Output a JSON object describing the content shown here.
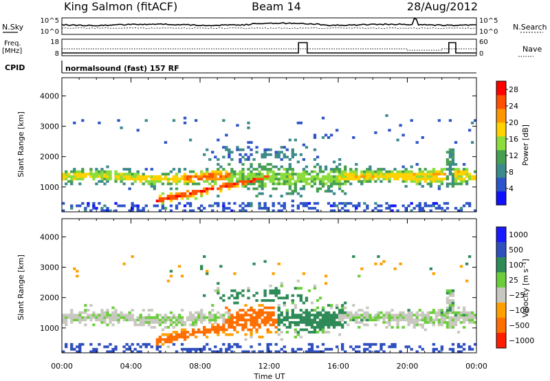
{
  "header": {
    "station": "King Salmon (fitACF)",
    "beam": "Beam 14",
    "date": "28/Aug/2012"
  },
  "aux_panels": {
    "nsky_label": "N.Sky",
    "nsearch_label": "N.Search",
    "freq_label_1": "Freq.",
    "freq_label_2": "[MHz]",
    "nave_label": "Nave",
    "cpid_label": "CPID",
    "cpid_text": "normalsound (fast) 157 RF",
    "noise_ticks": [
      "10^5",
      "10^0"
    ],
    "freq_ticks": [
      "18",
      "8"
    ],
    "nave_ticks": [
      "60",
      "0"
    ]
  },
  "chart_data": [
    {
      "type": "heatmap",
      "name": "power-panel",
      "ylabel": "Slant Range [km]",
      "ylim": [
        180,
        4600
      ],
      "yticks": [
        1000,
        2000,
        3000,
        4000
      ],
      "colorbar": {
        "label": "Power [dB]",
        "ticks": [
          4,
          8,
          12,
          16,
          20,
          24,
          28
        ],
        "range": [
          0,
          30
        ],
        "colors": [
          "#1111ff",
          "#2d54c8",
          "#3c8a8a",
          "#46a050",
          "#8cdc3c",
          "#ffd200",
          "#ff9600",
          "#ff5000",
          "#ff0000"
        ]
      }
    },
    {
      "type": "heatmap",
      "name": "velocity-panel",
      "ylabel": "Slant Range [km]",
      "ylim": [
        180,
        4600
      ],
      "yticks": [
        1000,
        2000,
        3000,
        4000
      ],
      "colorbar": {
        "label": "Velocity [m s⁻¹]",
        "ticks": [
          "1000",
          "500",
          "100",
          "25",
          "−25",
          "−100",
          "−500",
          "−1000"
        ],
        "colors": [
          "#1a1aff",
          "#2f4fbf",
          "#2e8b57",
          "#6ccd3c",
          "#c8c8c0",
          "#ffa000",
          "#ff6e00",
          "#ff1e00"
        ]
      }
    }
  ],
  "x_axis": {
    "label": "Time UT",
    "range_hours": [
      0,
      24
    ],
    "ticks": [
      "00:00",
      "04:00",
      "08:00",
      "12:00",
      "16:00",
      "20:00",
      "00:00"
    ]
  }
}
